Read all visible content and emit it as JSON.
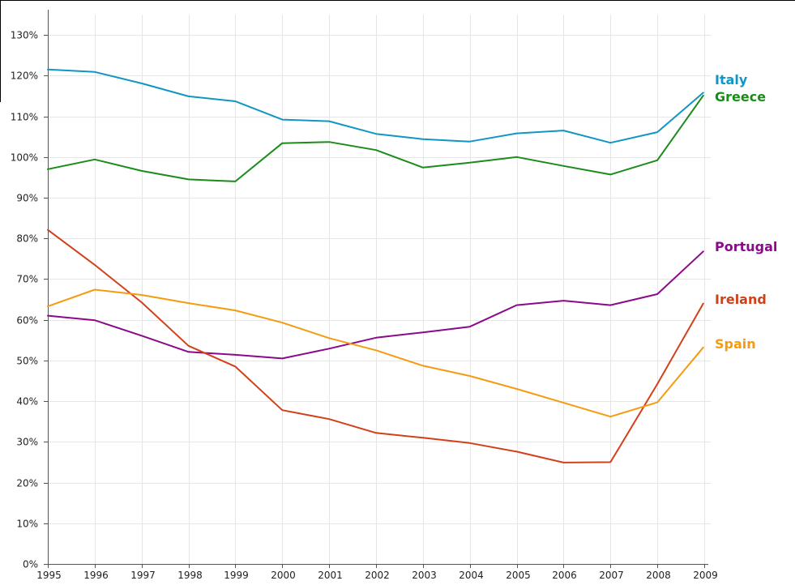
{
  "chart_data": {
    "type": "line",
    "title": "",
    "xlabel": "",
    "ylabel": "",
    "x": [
      1995,
      1996,
      1997,
      1998,
      1999,
      2000,
      2001,
      2002,
      2003,
      2004,
      2005,
      2006,
      2007,
      2008,
      2009
    ],
    "x_tick_labels": [
      "1995",
      "1996",
      "1997",
      "1998",
      "1999",
      "2000",
      "2001",
      "2002",
      "2003",
      "2004",
      "2005",
      "2006",
      "2007",
      "2008",
      "2009"
    ],
    "ylim": [
      0,
      135
    ],
    "y_ticks": [
      0,
      10,
      20,
      30,
      40,
      50,
      60,
      70,
      80,
      90,
      100,
      110,
      120,
      130
    ],
    "y_tick_labels": [
      "0%",
      "10%",
      "20%",
      "30%",
      "40%",
      "50%",
      "60%",
      "70%",
      "80%",
      "90%",
      "100%",
      "110%",
      "120%",
      "130%"
    ],
    "grid": true,
    "legend": "end-of-line labels",
    "series": [
      {
        "name": "Italy",
        "color": "#1096c4",
        "x": [
          1995,
          1996,
          1997,
          1998,
          1999,
          2000,
          2001,
          2002,
          2003,
          2004,
          2005,
          2006,
          2007,
          2008,
          2008.98
        ],
        "values": [
          121.5,
          120.9,
          118.1,
          114.9,
          113.7,
          109.2,
          108.8,
          105.7,
          104.4,
          103.8,
          105.8,
          106.5,
          103.5,
          106.1,
          115.8
        ]
      },
      {
        "name": "Greece",
        "color": "#1a8c1a",
        "x": [
          1995,
          1996,
          1997,
          1998,
          1999,
          2000,
          2001,
          2002,
          2003,
          2004,
          2005,
          2006,
          2007,
          2008,
          2008.98
        ],
        "values": [
          97.0,
          99.4,
          96.6,
          94.5,
          94.0,
          103.4,
          103.7,
          101.7,
          97.4,
          98.6,
          100.0,
          97.8,
          95.7,
          99.2,
          115.1
        ]
      },
      {
        "name": "Portugal",
        "color": "#8b0a8b",
        "x": [
          1995,
          1996,
          1997,
          1998,
          1999,
          2000,
          2001,
          2002,
          2003,
          2004,
          2005,
          2006,
          2007,
          2008,
          2008.98
        ],
        "values": [
          61.0,
          59.9,
          56.1,
          52.1,
          51.4,
          50.5,
          52.9,
          55.6,
          56.9,
          58.3,
          63.6,
          64.7,
          63.6,
          66.3,
          76.8
        ]
      },
      {
        "name": "Ireland",
        "color": "#d2401a",
        "x": [
          1995,
          1996,
          1997,
          1998,
          1999,
          2000,
          2001,
          2002,
          2003,
          2004,
          2005,
          2006,
          2007,
          2008,
          2008.98
        ],
        "values": [
          82.1,
          73.5,
          64.3,
          53.6,
          48.5,
          37.8,
          35.6,
          32.2,
          31.0,
          29.7,
          27.6,
          24.9,
          25.0,
          44.2,
          64.0
        ]
      },
      {
        "name": "Spain",
        "color": "#f59b0f",
        "x": [
          1995,
          1996,
          1997,
          1998,
          1999,
          2000,
          2001,
          2002,
          2003,
          2004,
          2005,
          2006,
          2007,
          2008,
          2008.98
        ],
        "values": [
          63.3,
          67.4,
          66.1,
          64.1,
          62.3,
          59.3,
          55.5,
          52.5,
          48.7,
          46.2,
          43.0,
          39.6,
          36.2,
          39.7,
          53.2
        ]
      }
    ]
  }
}
